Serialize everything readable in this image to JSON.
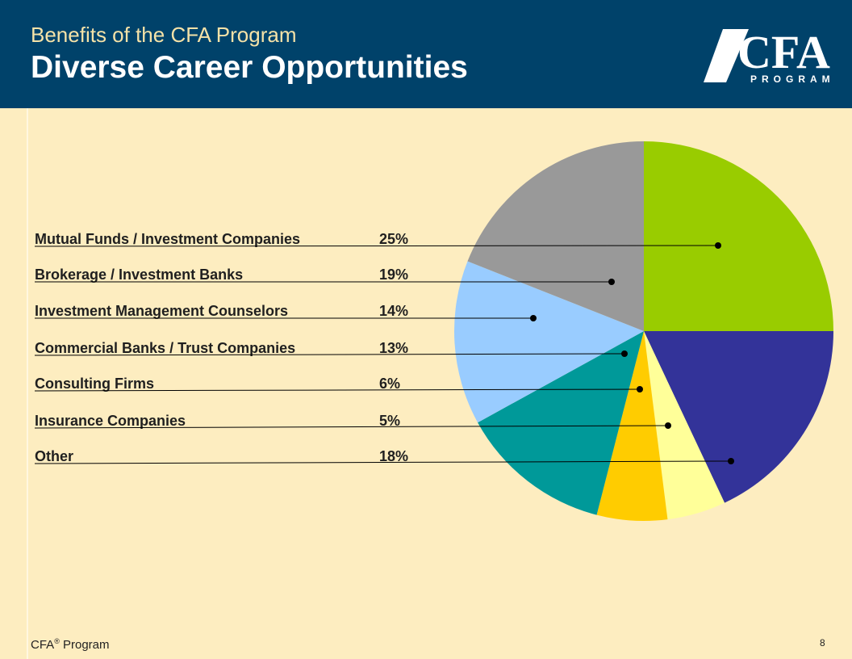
{
  "header": {
    "subtitle": "Benefits of the CFA Program",
    "title": "Diverse Career Opportunities",
    "logo": {
      "main": "CFA",
      "sub": "PROGRAM"
    }
  },
  "chart_data": {
    "type": "pie",
    "categories": [
      "Mutual Funds / Investment Companies",
      "Brokerage / Investment Banks",
      "Investment Management Counselors",
      "Commercial Banks / Trust Companies",
      "Consulting Firms",
      "Insurance Companies",
      "Other"
    ],
    "values": [
      25,
      19,
      14,
      13,
      6,
      5,
      18
    ],
    "value_labels": [
      "25%",
      "19%",
      "14%",
      "13%",
      "6%",
      "5%",
      "18%"
    ],
    "colors": [
      "#99CC00",
      "#999999",
      "#99CCFF",
      "#009999",
      "#FFCC00",
      "#FFFF99",
      "#333399"
    ],
    "slice_order": [
      0,
      6,
      5,
      4,
      3,
      2,
      1
    ],
    "start_angle_deg": 0,
    "legend": "left, leader lines to slices"
  },
  "footer": {
    "brand": "CFA",
    "registered": "®",
    "program": " Program",
    "page": "8"
  }
}
